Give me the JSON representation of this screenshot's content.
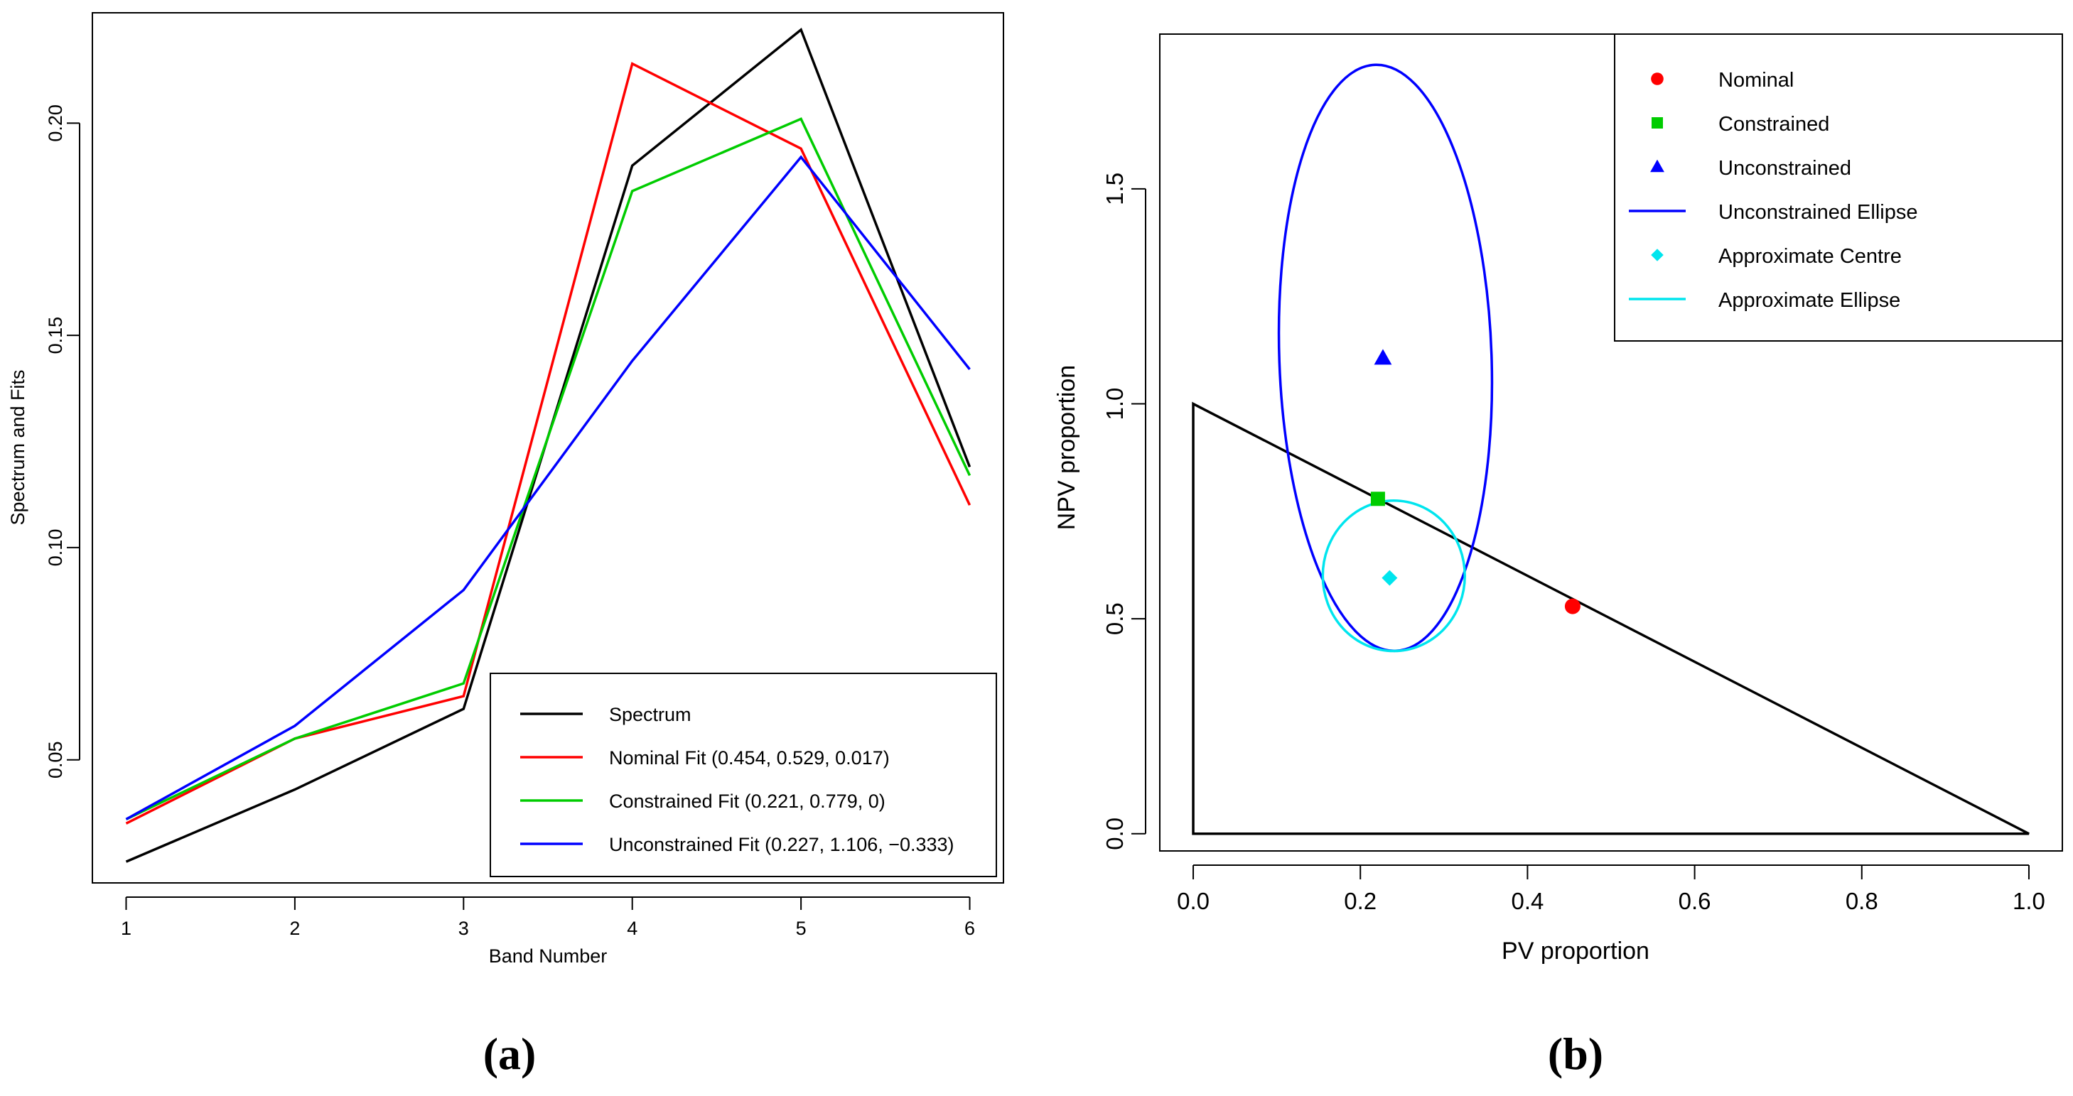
{
  "chart_data": [
    {
      "type": "line",
      "panel_label": "(a)",
      "title": "",
      "xlabel": "Band Number",
      "ylabel": "Spectrum and Fits",
      "xlim": [
        0.8,
        6.2
      ],
      "ylim": [
        0.021,
        0.226
      ],
      "x": [
        1,
        2,
        3,
        4,
        5,
        6
      ],
      "x_ticks": [
        1,
        2,
        3,
        4,
        5,
        6
      ],
      "y_ticks": [
        0.05,
        0.1,
        0.15,
        0.2
      ],
      "y_tick_labels": [
        "0.05",
        "0.10",
        "0.15",
        "0.20"
      ],
      "legend_position": "bottom-right",
      "series": [
        {
          "name": "Spectrum",
          "color": "#000000",
          "values": [
            0.026,
            0.043,
            0.062,
            0.19,
            0.222,
            0.119
          ]
        },
        {
          "name": "Nominal Fit (0.454, 0.529, 0.017)",
          "color": "#ff0000",
          "values": [
            0.035,
            0.055,
            0.065,
            0.214,
            0.194,
            0.11
          ]
        },
        {
          "name": "Constrained Fit (0.221, 0.779, 0)",
          "color": "#00cc00",
          "values": [
            0.036,
            0.055,
            0.068,
            0.184,
            0.201,
            0.117
          ]
        },
        {
          "name": "Unconstrained Fit (0.227, 1.106, −0.333)",
          "color": "#0000ff",
          "values": [
            0.036,
            0.058,
            0.09,
            0.144,
            0.192,
            0.142
          ]
        }
      ]
    },
    {
      "type": "scatter",
      "panel_label": "(b)",
      "title": "",
      "xlabel": "PV proportion",
      "ylabel": "NPV proportion",
      "xlim": [
        -0.04,
        1.04
      ],
      "ylim": [
        -0.04,
        1.86
      ],
      "x_ticks": [
        0.0,
        0.2,
        0.4,
        0.6,
        0.8,
        1.0
      ],
      "x_tick_labels": [
        "0.0",
        "0.2",
        "0.4",
        "0.6",
        "0.8",
        "1.0"
      ],
      "y_ticks": [
        0.0,
        0.5,
        1.0,
        1.5
      ],
      "y_tick_labels": [
        "0.0",
        "0.5",
        "1.0",
        "1.5"
      ],
      "legend_position": "top-right",
      "triangle": {
        "color": "#000000",
        "vertices": [
          [
            0,
            0
          ],
          [
            0,
            1
          ],
          [
            1,
            0
          ]
        ]
      },
      "points": [
        {
          "name": "Nominal",
          "x": 0.454,
          "y": 0.529,
          "color": "#ff0000",
          "marker": "circle"
        },
        {
          "name": "Constrained",
          "x": 0.221,
          "y": 0.779,
          "color": "#00cc00",
          "marker": "square"
        },
        {
          "name": "Unconstrained",
          "x": 0.227,
          "y": 1.106,
          "color": "#0000ff",
          "marker": "triangle"
        },
        {
          "name": "Approximate Centre",
          "x": 0.235,
          "y": 0.595,
          "color": "#00e5ee",
          "marker": "diamond"
        }
      ],
      "ellipses": [
        {
          "name": "Unconstrained Ellipse",
          "color": "#0000ff",
          "cx": 0.23,
          "cy": 1.107,
          "rx": 0.127,
          "ry": 0.682,
          "angle_deg": -2
        },
        {
          "name": "Approximate Ellipse",
          "color": "#00e5ee",
          "cx": 0.24,
          "cy": 0.6,
          "rx": 0.085,
          "ry": 0.175,
          "angle_deg": 0
        }
      ],
      "legend": [
        {
          "label": "Nominal",
          "color": "#ff0000",
          "symbol": "circle"
        },
        {
          "label": "Constrained",
          "color": "#00cc00",
          "symbol": "square"
        },
        {
          "label": "Unconstrained",
          "color": "#0000ff",
          "symbol": "triangle"
        },
        {
          "label": "Unconstrained Ellipse",
          "color": "#0000ff",
          "symbol": "line"
        },
        {
          "label": "Approximate Centre",
          "color": "#00e5ee",
          "symbol": "diamond"
        },
        {
          "label": "Approximate Ellipse",
          "color": "#00e5ee",
          "symbol": "line"
        }
      ]
    }
  ]
}
